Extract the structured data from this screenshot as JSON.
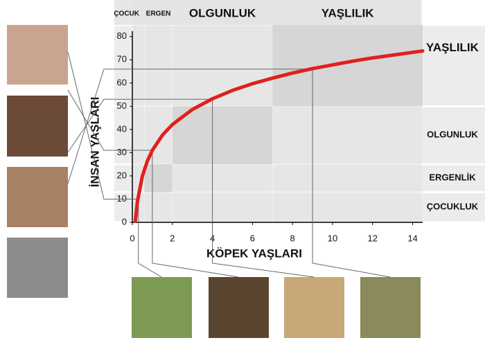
{
  "chart_data": {
    "type": "line",
    "xlabel": "KÖPEK YAŞLARI",
    "ylabel": "İNSAN YAŞLARI",
    "xlim": [
      0,
      14.5
    ],
    "ylim": [
      0,
      85
    ],
    "xticks": [
      0,
      2,
      4,
      6,
      8,
      10,
      12,
      14
    ],
    "yticks": [
      0,
      10,
      20,
      30,
      40,
      50,
      60,
      70,
      80
    ],
    "color": "#e0201e",
    "x": [
      0.15,
      0.25,
      0.5,
      0.75,
      1,
      1.5,
      2,
      3,
      4,
      5,
      6,
      7,
      8,
      9,
      10,
      11,
      12,
      13,
      14,
      14.5
    ],
    "values": [
      0.6,
      8.8,
      19.9,
      26.4,
      31,
      37.5,
      42.1,
      48.6,
      53.2,
      56.8,
      59.7,
      62.1,
      64.3,
      66.2,
      67.8,
      69.4,
      70.8,
      72.0,
      73.2,
      73.8
    ],
    "x_stages": [
      {
        "label": "ÇOCUK",
        "from": 0,
        "to": 0.6
      },
      {
        "label": "ERGEN",
        "from": 0.6,
        "to": 2
      },
      {
        "label": "OLGUNLUK",
        "from": 2,
        "to": 7
      },
      {
        "label": "YAŞLILIK",
        "from": 7,
        "to": 14.5
      }
    ],
    "y_stages": [
      {
        "label": "ÇOCUKLUK",
        "from": 0,
        "to": 13
      },
      {
        "label": "ERGENLİK",
        "from": 13,
        "to": 25
      },
      {
        "label": "OLGUNLUK",
        "from": 25,
        "to": 50
      },
      {
        "label": "YAŞLILIK",
        "from": 50,
        "to": 85
      }
    ],
    "highlights": [
      {
        "x": 9,
        "y": 66
      },
      {
        "x": 4,
        "y": 53
      },
      {
        "x": 1,
        "y": 31
      },
      {
        "x": 0.3,
        "y": 10
      }
    ]
  }
}
